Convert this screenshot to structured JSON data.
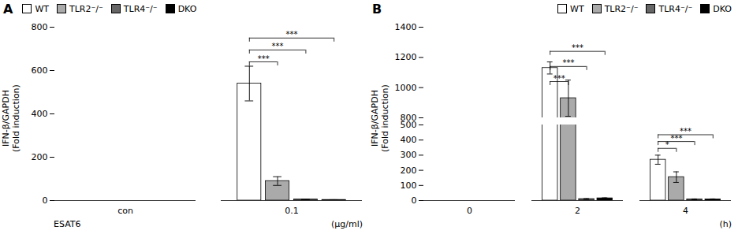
{
  "chart_data": [
    {
      "type": "bar",
      "title": "A",
      "ylabel": "IFN-β/GAPDH\n(Fold induction)",
      "categories": [
        "con",
        "0.1"
      ],
      "series": [
        {
          "name": "WT",
          "color": "#ffffff",
          "values": [
            0,
            540
          ],
          "errors": [
            0,
            80
          ]
        },
        {
          "name": "TLR2⁻/⁻",
          "color": "#aaaaaa",
          "values": [
            0,
            90
          ],
          "errors": [
            0,
            20
          ]
        },
        {
          "name": "TLR4⁻/⁻",
          "color": "#666666",
          "values": [
            0,
            5
          ],
          "errors": [
            0,
            2
          ]
        },
        {
          "name": "DKO",
          "color": "#000000",
          "values": [
            0,
            3
          ],
          "errors": [
            0,
            1
          ]
        }
      ],
      "ylim": [
        0,
        800
      ],
      "yticks": [
        0,
        200,
        400,
        600,
        800
      ],
      "legend": "upper left",
      "significance": [
        {
          "category": "0.1",
          "from": "WT",
          "to": "TLR2⁻/⁻",
          "y": 640,
          "label": "***"
        },
        {
          "category": "0.1",
          "from": "WT",
          "to": "TLR4⁻/⁻",
          "y": 695,
          "label": "***"
        },
        {
          "category": "0.1",
          "from": "WT",
          "to": "DKO",
          "y": 750,
          "label": "***"
        }
      ],
      "annotations": [
        {
          "text": "ESAT6"
        },
        {
          "text": "(μg/ml)"
        }
      ]
    },
    {
      "type": "bar",
      "title": "B",
      "ylabel": "IFN-β/GAPDH\n(Fold induction)",
      "categories": [
        "0",
        "2",
        "4"
      ],
      "series": [
        {
          "name": "WT",
          "color": "#ffffff",
          "values": [
            0,
            1130,
            270
          ],
          "errors": [
            0,
            40,
            30
          ]
        },
        {
          "name": "TLR2⁻/⁻",
          "color": "#aaaaaa",
          "values": [
            0,
            930,
            155
          ],
          "errors": [
            0,
            120,
            35
          ]
        },
        {
          "name": "TLR4⁻/⁻",
          "color": "#666666",
          "values": [
            0,
            10,
            8
          ],
          "errors": [
            0,
            3,
            3
          ]
        },
        {
          "name": "DKO",
          "color": "#000000",
          "values": [
            0,
            15,
            8
          ],
          "errors": [
            0,
            3,
            3
          ]
        }
      ],
      "ylim": [
        [
          0,
          500
        ],
        [
          800,
          1400
        ]
      ],
      "yticks": [
        0,
        100,
        200,
        300,
        400,
        500,
        800,
        1000,
        1200,
        1400
      ],
      "legend": "upper right",
      "significance": [
        {
          "category": "2",
          "from": "WT",
          "to": "TLR2⁻/⁻",
          "y": 1040,
          "label": "***"
        },
        {
          "category": "2",
          "from": "WT",
          "to": "TLR4⁻/⁻",
          "y": 1140,
          "label": "***"
        },
        {
          "category": "2",
          "from": "WT",
          "to": "DKO",
          "y": 1240,
          "label": "***"
        },
        {
          "category": "4",
          "from": "WT",
          "to": "TLR2⁻/⁻",
          "y": 345,
          "label": "*"
        },
        {
          "category": "4",
          "from": "WT",
          "to": "TLR4⁻/⁻",
          "y": 390,
          "label": "***"
        },
        {
          "category": "4",
          "from": "WT",
          "to": "DKO",
          "y": 435,
          "label": "***"
        }
      ],
      "annotations": [
        {
          "text": "(h)"
        }
      ]
    }
  ]
}
